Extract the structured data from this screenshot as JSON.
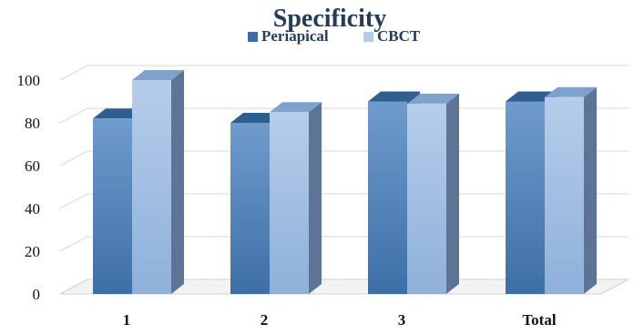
{
  "chart_data": {
    "type": "bar",
    "title": "Specificity",
    "categories": [
      "1",
      "2",
      "3",
      "Total"
    ],
    "series": [
      {
        "name": "Periapical",
        "values": [
          82,
          80,
          90,
          90
        ]
      },
      {
        "name": "CBCT",
        "values": [
          100,
          85,
          89,
          92
        ]
      }
    ],
    "ylim": [
      0,
      100
    ],
    "yticks": [
      0,
      20,
      40,
      60,
      80,
      100
    ],
    "grid": true,
    "legend": "top-center",
    "style": "3d-columns",
    "colors": {
      "Periapical": {
        "top": "#2f5f8f",
        "front_light": "#6f9bcc",
        "front_dark": "#3d6fa6",
        "side": "#2e5580"
      },
      "CBCT": {
        "top": "#7fa2cc",
        "front_light": "#b5cdea",
        "front_dark": "#8fb0da",
        "side": "#5d7496"
      },
      "title": "#243c5c",
      "axis_text": "#111111",
      "grid": "#d9d9d9"
    }
  }
}
